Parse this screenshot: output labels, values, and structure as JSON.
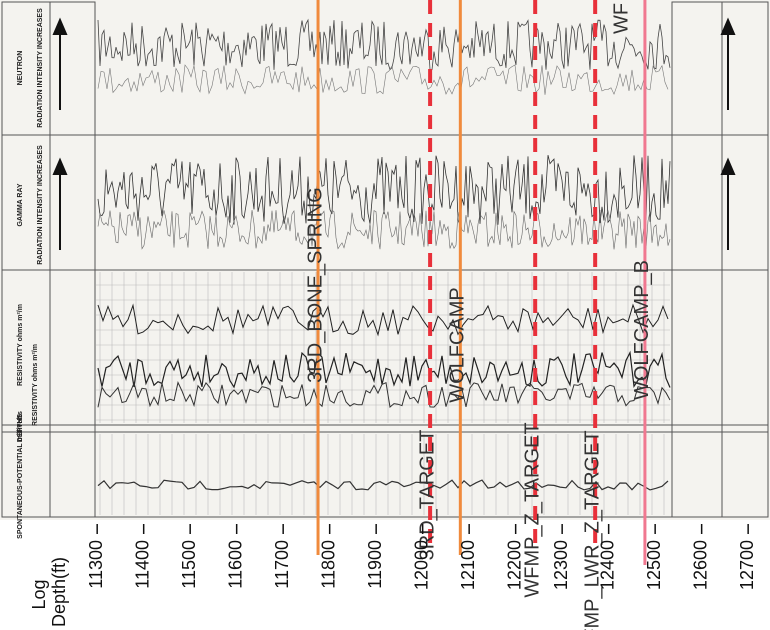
{
  "chart_data": {
    "type": "well-log-tops",
    "xlabel": "Log Depth(ft)",
    "xlim": [
      11091,
      12747
    ],
    "xticks": [
      11300,
      11400,
      11500,
      11600,
      11700,
      11800,
      11900,
      12000,
      12100,
      12200,
      12300,
      12400,
      12500,
      12600,
      12700
    ],
    "log_headers": [
      "NEUTRON",
      "RADIATION INTENSITY INCREASES",
      "GAMMA RAY",
      "RADIATION INTENSITY INCREASES",
      "RESISTIVITY ohms m²/m",
      "RESISTIVITY ohms m²/m",
      "DEPTHS",
      "SPONTANEOUS-POTENTIAL millivolts"
    ],
    "tops": [
      {
        "name": "3RD_BONE_SPRING",
        "depth": 11775,
        "color": "#f08a3c",
        "dashed": false
      },
      {
        "name": "3RD_TARGET",
        "depth": 12016,
        "color": "#e8303a",
        "dashed": true
      },
      {
        "name": "WOLFCAMP",
        "depth": 12081,
        "color": "#f08a3c",
        "dashed": false
      },
      {
        "name": "WFMP_Z_TARGET",
        "depth": 12242,
        "color": "#e8303a",
        "dashed": true
      },
      {
        "name": "WFMP_LWR_Z_TARGET",
        "depth": 12371,
        "color": "#e8303a",
        "dashed": true
      },
      {
        "name": "WOLFCAMP_B",
        "depth": 12478,
        "color": "#f07890",
        "dashed": false
      }
    ],
    "annotations": [
      "WF"
    ]
  }
}
